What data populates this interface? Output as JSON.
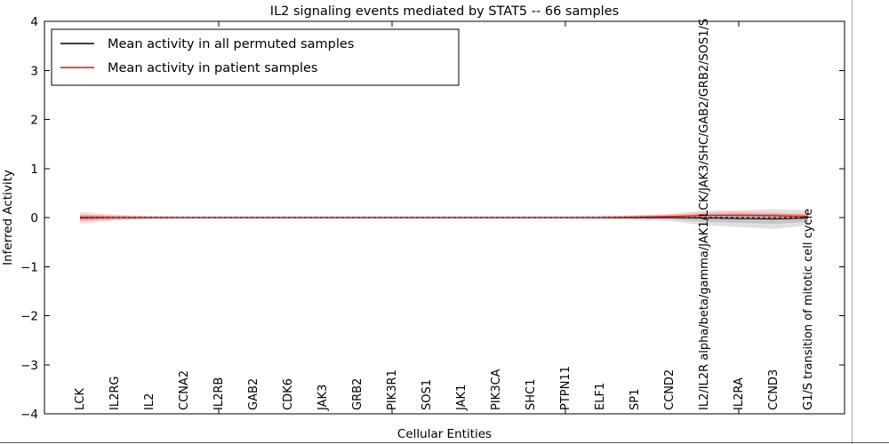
{
  "chart_data": {
    "type": "line",
    "title": "IL2 signaling events mediated by STAT5 -- 66 samples",
    "xlabel": "Cellular Entities",
    "ylabel": "Inferred Activity",
    "ylim": [
      -4,
      4
    ],
    "yticks": [
      -4,
      -3,
      -2,
      -1,
      0,
      1,
      2,
      3,
      4
    ],
    "xtick_positions": [
      4,
      9,
      14,
      19
    ],
    "grid": false,
    "categories": [
      "LCK",
      "IL2RG",
      "IL2",
      "CCNA2",
      "IL2RB",
      "GAB2",
      "CDK6",
      "JAK3",
      "GRB2",
      "PIK3R1",
      "SOS1",
      "JAK1",
      "PIK3CA",
      "SHC1",
      "PTPN11",
      "ELF1",
      "SP1",
      "CCND2",
      "IL2/IL2R alpha/beta/gamma/JAK1/LCK/JAK3/SHC/GAB2/GRB2/SOS1/S",
      "IL2RA",
      "CCND3",
      "G1/S transition of mitotic cell cycle"
    ],
    "legend": {
      "position": "upper left",
      "entries": [
        {
          "label": "Mean activity in all permuted samples",
          "color": "#000000"
        },
        {
          "label": "Mean activity in patient samples",
          "color": "#ff0000"
        }
      ]
    },
    "zero_line": {
      "style": "dashed",
      "color": "#000000",
      "y": 0
    },
    "series": [
      {
        "name": "Mean activity in all permuted samples",
        "color": "#000000",
        "band_opacity": 0.12,
        "values": [
          0,
          0,
          0,
          0,
          0,
          0,
          0,
          0,
          0,
          0,
          0,
          0,
          0,
          0,
          0,
          0,
          0,
          0,
          -0.01,
          -0.02,
          -0.03,
          -0.01
        ],
        "band": [
          0.06,
          0.04,
          0.03,
          0.03,
          0.03,
          0.03,
          0.03,
          0.03,
          0.03,
          0.03,
          0.03,
          0.03,
          0.03,
          0.03,
          0.03,
          0.04,
          0.05,
          0.07,
          0.15,
          0.17,
          0.2,
          0.16
        ]
      },
      {
        "name": "Mean activity in patient samples",
        "color": "#ff0000",
        "band_opacity": 0.15,
        "values": [
          -0.01,
          0,
          0,
          0,
          0,
          0,
          0,
          0,
          0,
          0,
          0,
          0,
          0,
          0,
          0,
          0,
          0.01,
          0.02,
          0.04,
          0.05,
          0.04,
          0.02
        ],
        "band": [
          0.12,
          0.06,
          0.03,
          0.02,
          0.02,
          0.02,
          0.02,
          0.02,
          0.02,
          0.02,
          0.02,
          0.02,
          0.02,
          0.02,
          0.02,
          0.02,
          0.03,
          0.04,
          0.06,
          0.06,
          0.06,
          0.05
        ]
      }
    ]
  }
}
